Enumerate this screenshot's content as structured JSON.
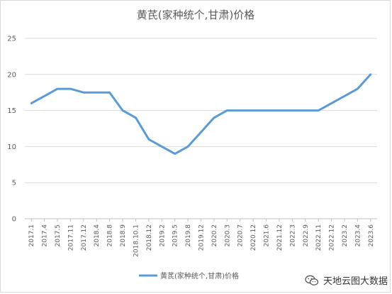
{
  "chart_data": {
    "type": "line",
    "title": "黄芪(家种统个,甘肃)价格",
    "xlabel": "",
    "ylabel": "",
    "ylim": [
      0,
      25
    ],
    "yticks": [
      0,
      5,
      10,
      15,
      20,
      25
    ],
    "grid": true,
    "legend": "bottom",
    "x": [
      "2017.1",
      "2017.4",
      "2017.5",
      "2017.11",
      "2017.12",
      "2018.4",
      "2018.8",
      "2018.9",
      "2018.10.1",
      "2018.12",
      "2019.2",
      "2019.5",
      "2019.8",
      "2019.12",
      "2020.2",
      "2020.3",
      "2020.7",
      "2020.12",
      "2021.6",
      "2021.12",
      "2022.3",
      "2022.9",
      "2022.11",
      "2022.12",
      "2023.2",
      "2023.4",
      "2023.6"
    ],
    "series": [
      {
        "name": "黄芪(家种统个,甘肃)价格",
        "color": "#5b9bd5",
        "values": [
          16,
          17,
          18,
          18,
          17.5,
          17.5,
          17.5,
          15,
          14,
          11,
          10,
          9,
          10,
          12,
          14,
          15,
          15,
          15,
          15,
          15,
          15,
          15,
          15,
          16,
          17,
          18,
          20
        ]
      }
    ]
  },
  "watermark": {
    "text": "天地云图大数据",
    "icon": "wechat-icon"
  }
}
